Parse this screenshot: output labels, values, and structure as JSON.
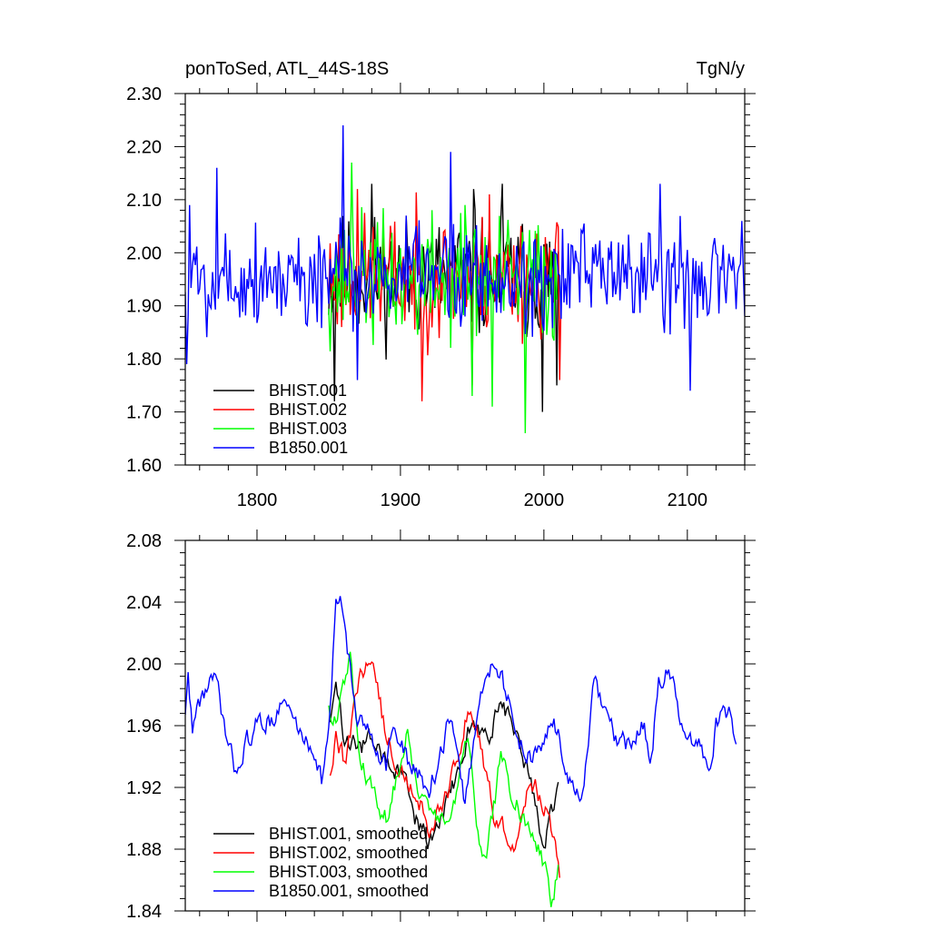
{
  "figure": {
    "title_left": "ponToSed, ATL_44S-18S",
    "title_right": "TgN/y"
  },
  "chart_data": [
    {
      "type": "line",
      "title": "ponToSed, ATL_44S-18S",
      "units": "TgN/y",
      "xlim": [
        1750,
        2140
      ],
      "ylim": [
        1.6,
        2.3
      ],
      "x_ticks": [
        1800,
        1900,
        2000,
        2100
      ],
      "x_tick_labels": [
        "1800",
        "1900",
        "2000",
        "2100"
      ],
      "y_ticks": [
        1.6,
        1.7,
        1.8,
        1.9,
        2.0,
        2.1,
        2.2,
        2.3
      ],
      "y_tick_labels": [
        "1.60",
        "1.70",
        "1.80",
        "1.90",
        "2.00",
        "2.10",
        "2.20",
        "2.30"
      ],
      "legend_position": "bottom-left",
      "series": [
        {
          "name": "BHIST.001",
          "color": "#000000",
          "x_start": 1850,
          "x_end": 2010,
          "seed": 11,
          "mean": 1.955,
          "amp": 0.095,
          "mode": "noise",
          "anchors": [
            [
              1854,
              1.72
            ],
            [
              1880,
              2.13
            ],
            [
              1951,
              2.12
            ],
            [
              1971,
              2.13
            ],
            [
              1999,
              1.7
            ],
            [
              2009,
              1.75
            ]
          ]
        },
        {
          "name": "BHIST.002",
          "color": "#ff0000",
          "x_start": 1850,
          "x_end": 2012,
          "seed": 23,
          "mean": 1.955,
          "amp": 0.095,
          "mode": "noise",
          "anchors": [
            [
              1915,
              1.72
            ],
            [
              1870,
              2.12
            ],
            [
              1962,
              2.11
            ],
            [
              1950,
              1.75
            ],
            [
              2011,
              1.76
            ]
          ]
        },
        {
          "name": "BHIST.003",
          "color": "#00ff00",
          "x_start": 1850,
          "x_end": 2009,
          "seed": 37,
          "mean": 1.95,
          "amp": 0.1,
          "mode": "noise",
          "anchors": [
            [
              1866,
              2.17
            ],
            [
              1987,
              1.66
            ],
            [
              1950,
              1.73
            ],
            [
              1945,
              2.09
            ],
            [
              1964,
              1.71
            ]
          ]
        },
        {
          "name": "B1850.001",
          "color": "#0000ff",
          "x_start": 1750,
          "x_end": 2140,
          "seed": 5,
          "mean": 1.955,
          "amp": 0.085,
          "mode": "noise",
          "anchors": [
            [
              1751,
              1.79
            ],
            [
              1753,
              2.09
            ],
            [
              1772,
              2.16
            ],
            [
              1860,
              2.24
            ],
            [
              1935,
              2.19
            ],
            [
              2102,
              1.74
            ],
            [
              1870,
              1.76
            ],
            [
              2081,
              2.13
            ],
            [
              2138,
              2.06
            ]
          ]
        }
      ]
    },
    {
      "type": "line",
      "title": "",
      "xlim": [
        1750,
        2140
      ],
      "ylim": [
        1.84,
        2.08
      ],
      "x_ticks": [
        1800,
        1900,
        2000,
        2100
      ],
      "y_ticks": [
        1.84,
        1.88,
        1.92,
        1.96,
        2.0,
        2.04,
        2.08
      ],
      "y_tick_labels": [
        "1.84",
        "1.88",
        "1.92",
        "1.96",
        "2.00",
        "2.04",
        "2.08"
      ],
      "legend_position": "bottom-left",
      "series": [
        {
          "name": "BHIST.001, smoothed",
          "color": "#000000",
          "x_start": 1851,
          "x_end": 2010,
          "seed": 11,
          "mode": "smooth",
          "shape": [
            [
              1851,
              1.965
            ],
            [
              1855,
              1.985
            ],
            [
              1860,
              1.955
            ],
            [
              1870,
              1.945
            ],
            [
              1880,
              1.95
            ],
            [
              1890,
              1.935
            ],
            [
              1900,
              1.93
            ],
            [
              1910,
              1.9
            ],
            [
              1920,
              1.885
            ],
            [
              1930,
              1.905
            ],
            [
              1940,
              1.93
            ],
            [
              1950,
              1.965
            ],
            [
              1960,
              1.95
            ],
            [
              1970,
              1.975
            ],
            [
              1980,
              1.955
            ],
            [
              1990,
              1.925
            ],
            [
              2000,
              1.885
            ],
            [
              2005,
              1.9
            ],
            [
              2010,
              1.915
            ]
          ]
        },
        {
          "name": "BHIST.002, smoothed",
          "color": "#ff0000",
          "x_start": 1851,
          "x_end": 2011,
          "seed": 23,
          "mode": "smooth",
          "shape": [
            [
              1851,
              1.93
            ],
            [
              1855,
              1.955
            ],
            [
              1860,
              1.94
            ],
            [
              1865,
              1.95
            ],
            [
              1870,
              1.985
            ],
            [
              1875,
              2.0
            ],
            [
              1880,
              2.005
            ],
            [
              1885,
              1.98
            ],
            [
              1890,
              1.95
            ],
            [
              1900,
              1.935
            ],
            [
              1910,
              1.92
            ],
            [
              1920,
              1.895
            ],
            [
              1930,
              1.91
            ],
            [
              1940,
              1.935
            ],
            [
              1945,
              1.965
            ],
            [
              1950,
              1.97
            ],
            [
              1960,
              1.925
            ],
            [
              1965,
              1.905
            ],
            [
              1970,
              1.895
            ],
            [
              1980,
              1.885
            ],
            [
              1990,
              1.925
            ],
            [
              2000,
              1.91
            ],
            [
              2005,
              1.89
            ],
            [
              2011,
              1.865
            ]
          ]
        },
        {
          "name": "BHIST.003, smoothed",
          "color": "#00ff00",
          "x_start": 1850,
          "x_end": 2010,
          "seed": 37,
          "mode": "smooth",
          "shape": [
            [
              1850,
              1.975
            ],
            [
              1855,
              1.96
            ],
            [
              1860,
              1.985
            ],
            [
              1865,
              2.005
            ],
            [
              1870,
              1.95
            ],
            [
              1880,
              1.92
            ],
            [
              1890,
              1.9
            ],
            [
              1900,
              1.935
            ],
            [
              1905,
              1.96
            ],
            [
              1910,
              1.93
            ],
            [
              1920,
              1.9
            ],
            [
              1930,
              1.895
            ],
            [
              1940,
              1.92
            ],
            [
              1945,
              1.96
            ],
            [
              1950,
              1.935
            ],
            [
              1955,
              1.88
            ],
            [
              1960,
              1.875
            ],
            [
              1970,
              1.94
            ],
            [
              1980,
              1.91
            ],
            [
              1990,
              1.895
            ],
            [
              2000,
              1.87
            ],
            [
              2005,
              1.85
            ],
            [
              2010,
              1.865
            ]
          ]
        },
        {
          "name": "B1850.001, smoothed",
          "color": "#0000ff",
          "x_start": 1750,
          "x_end": 2134,
          "seed": 5,
          "mode": "smooth",
          "shape": [
            [
              1750,
              1.97
            ],
            [
              1752,
              1.99
            ],
            [
              1755,
              1.96
            ],
            [
              1760,
              1.975
            ],
            [
              1765,
              1.985
            ],
            [
              1770,
              1.99
            ],
            [
              1775,
              1.97
            ],
            [
              1780,
              1.945
            ],
            [
              1785,
              1.93
            ],
            [
              1790,
              1.945
            ],
            [
              1800,
              1.96
            ],
            [
              1810,
              1.965
            ],
            [
              1820,
              1.975
            ],
            [
              1830,
              1.955
            ],
            [
              1840,
              1.945
            ],
            [
              1845,
              1.925
            ],
            [
              1850,
              1.955
            ],
            [
              1855,
              2.035
            ],
            [
              1858,
              2.045
            ],
            [
              1862,
              2.02
            ],
            [
              1866,
              1.99
            ],
            [
              1870,
              1.96
            ],
            [
              1880,
              1.955
            ],
            [
              1890,
              1.935
            ],
            [
              1895,
              1.96
            ],
            [
              1900,
              1.945
            ],
            [
              1910,
              1.93
            ],
            [
              1920,
              1.92
            ],
            [
              1930,
              1.945
            ],
            [
              1935,
              1.97
            ],
            [
              1940,
              1.935
            ],
            [
              1945,
              1.91
            ],
            [
              1950,
              1.94
            ],
            [
              1955,
              1.975
            ],
            [
              1960,
              1.99
            ],
            [
              1965,
              2.005
            ],
            [
              1970,
              1.995
            ],
            [
              1980,
              1.955
            ],
            [
              1990,
              1.94
            ],
            [
              2000,
              1.945
            ],
            [
              2005,
              1.965
            ],
            [
              2010,
              1.955
            ],
            [
              2015,
              1.93
            ],
            [
              2020,
              1.92
            ],
            [
              2025,
              1.91
            ],
            [
              2030,
              1.94
            ],
            [
              2035,
              1.985
            ],
            [
              2040,
              1.975
            ],
            [
              2050,
              1.95
            ],
            [
              2060,
              1.945
            ],
            [
              2065,
              1.955
            ],
            [
              2070,
              1.96
            ],
            [
              2075,
              1.94
            ],
            [
              2080,
              1.99
            ],
            [
              2085,
              1.995
            ],
            [
              2090,
              1.985
            ],
            [
              2095,
              1.96
            ],
            [
              2100,
              1.945
            ],
            [
              2110,
              1.945
            ],
            [
              2115,
              1.93
            ],
            [
              2120,
              1.96
            ],
            [
              2125,
              1.975
            ],
            [
              2130,
              1.965
            ],
            [
              2134,
              1.95
            ]
          ]
        }
      ]
    }
  ]
}
